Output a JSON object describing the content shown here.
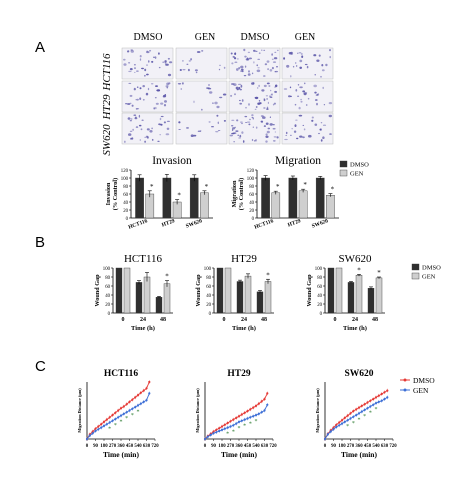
{
  "panels": {
    "a": "A",
    "b": "B",
    "c": "C"
  },
  "micrographs": {
    "columns": [
      "DMSO",
      "GEN",
      "DMSO",
      "GEN"
    ],
    "rows": [
      "HCT116",
      "HT29",
      "SW620"
    ],
    "stain_color": "#5a55a8"
  },
  "colors": {
    "dmso_bar": "#2f2f2f",
    "gen_bar": "#cfcfcf",
    "dmso_line": "#e53935",
    "gen_line": "#3d6fd6",
    "asterisk_c": "#2e7d32"
  },
  "chart_data": [
    {
      "id": "invasion",
      "type": "bar",
      "title": "Invasion",
      "ylabel": "Invasion\n(% Control)",
      "categories": [
        "HCT116",
        "HT29",
        "SW620"
      ],
      "series": [
        {
          "name": "DMSO",
          "values": [
            100,
            100,
            100
          ],
          "errors": [
            8,
            9,
            8
          ]
        },
        {
          "name": "GEN",
          "values": [
            60,
            40,
            63
          ],
          "errors": [
            8,
            6,
            5
          ]
        }
      ],
      "annotations": [
        "*",
        "*",
        "*"
      ],
      "ylim": [
        0,
        120
      ],
      "yticks": [
        0,
        20,
        40,
        60,
        80,
        100,
        120
      ]
    },
    {
      "id": "migration",
      "type": "bar",
      "title": "Migration",
      "ylabel": "Migration\n(% Control)",
      "categories": [
        "HCT116",
        "HT29",
        "SW620"
      ],
      "series": [
        {
          "name": "DMSO",
          "values": [
            100,
            100,
            100
          ],
          "errors": [
            6,
            5,
            4
          ]
        },
        {
          "name": "GEN",
          "values": [
            63,
            68,
            57
          ],
          "errors": [
            4,
            4,
            4
          ]
        }
      ],
      "annotations": [
        "*",
        "*",
        "*"
      ],
      "ylim": [
        0,
        120
      ],
      "yticks": [
        0,
        20,
        40,
        60,
        80,
        100,
        120
      ],
      "legend": {
        "position": "right",
        "items": [
          "DMSO",
          "GEN"
        ]
      }
    },
    {
      "id": "wound_hct116",
      "type": "bar",
      "title": "HCT116",
      "ylabel": "Wound Gap",
      "xlabel": "Time (h)",
      "categories": [
        "0",
        "24",
        "48"
      ],
      "series": [
        {
          "name": "DMSO",
          "values": [
            100,
            68,
            35
          ],
          "errors": [
            0,
            4,
            2
          ]
        },
        {
          "name": "GEN",
          "values": [
            100,
            80,
            65
          ],
          "errors": [
            0,
            10,
            7
          ]
        }
      ],
      "annotations": [
        "",
        "",
        "*"
      ],
      "ylim": [
        0,
        100
      ],
      "yticks": [
        0,
        20,
        40,
        60,
        80,
        100
      ]
    },
    {
      "id": "wound_ht29",
      "type": "bar",
      "title": "HT29",
      "ylabel": "Wound Gap",
      "xlabel": "Time (h)",
      "categories": [
        "0",
        "24",
        "48"
      ],
      "series": [
        {
          "name": "DMSO",
          "values": [
            100,
            70,
            47
          ],
          "errors": [
            0,
            3,
            3
          ]
        },
        {
          "name": "GEN",
          "values": [
            100,
            82,
            70
          ],
          "errors": [
            0,
            5,
            5
          ]
        }
      ],
      "annotations": [
        "",
        "",
        "*"
      ],
      "ylim": [
        0,
        100
      ],
      "yticks": [
        0,
        20,
        40,
        60,
        80,
        100
      ]
    },
    {
      "id": "wound_sw620",
      "type": "bar",
      "title": "SW620",
      "ylabel": "Wound Gap",
      "xlabel": "Time (h)",
      "categories": [
        "0",
        "24",
        "48"
      ],
      "series": [
        {
          "name": "DMSO",
          "values": [
            100,
            68,
            55
          ],
          "errors": [
            0,
            2,
            3
          ]
        },
        {
          "name": "GEN",
          "values": [
            100,
            84,
            78
          ],
          "errors": [
            0,
            2,
            2
          ]
        }
      ],
      "annotations": [
        "",
        "*",
        "*"
      ],
      "ylim": [
        0,
        100
      ],
      "yticks": [
        0,
        20,
        40,
        60,
        80,
        100
      ],
      "legend": {
        "position": "right",
        "items": [
          "DMSO",
          "GEN"
        ]
      }
    },
    {
      "id": "migdist_hct116",
      "type": "line",
      "title": "HCT116",
      "ylabel": "Migration Distance (μm)",
      "xlabel": "Time (min)",
      "xticks": [
        0,
        90,
        180,
        270,
        360,
        450,
        540,
        630,
        720
      ],
      "xlim": [
        0,
        720
      ],
      "ylim": [
        0,
        100
      ],
      "x": [
        0,
        30,
        60,
        90,
        120,
        150,
        180,
        210,
        240,
        270,
        300,
        330,
        360,
        390,
        420,
        450,
        480,
        510,
        540,
        570,
        600,
        630,
        660
      ],
      "series": [
        {
          "name": "DMSO",
          "values": [
            0,
            8,
            13,
            18,
            22,
            26,
            30,
            34,
            38,
            42,
            46,
            50,
            54,
            57,
            61,
            65,
            69,
            73,
            77,
            81,
            85,
            89,
            100
          ]
        },
        {
          "name": "GEN",
          "values": [
            0,
            6,
            10,
            14,
            17,
            20,
            23,
            26,
            29,
            32,
            35,
            38,
            41,
            44,
            47,
            50,
            53,
            56,
            59,
            62,
            65,
            68,
            80
          ]
        }
      ],
      "annotations": [
        "* * * * * *"
      ]
    },
    {
      "id": "migdist_ht29",
      "type": "line",
      "title": "HT29",
      "ylabel": "Migration Distance (μm)",
      "xlabel": "Time (min)",
      "xticks": [
        0,
        90,
        180,
        270,
        360,
        450,
        540,
        630,
        720
      ],
      "xlim": [
        0,
        720
      ],
      "ylim": [
        0,
        100
      ],
      "x": [
        0,
        30,
        60,
        90,
        120,
        150,
        180,
        210,
        240,
        270,
        300,
        330,
        360,
        390,
        420,
        450,
        480,
        510,
        540,
        570,
        600,
        630,
        660
      ],
      "series": [
        {
          "name": "DMSO",
          "values": [
            0,
            5,
            9,
            13,
            16,
            19,
            22,
            25,
            28,
            31,
            34,
            37,
            40,
            43,
            46,
            49,
            52,
            55,
            58,
            62,
            66,
            70,
            80
          ]
        },
        {
          "name": "GEN",
          "values": [
            0,
            4,
            7,
            10,
            12,
            14,
            16,
            18,
            20,
            22,
            24,
            27,
            30,
            32,
            34,
            36,
            38,
            40,
            42,
            44,
            47,
            50,
            60
          ]
        }
      ],
      "annotations": [
        "* * * * * *"
      ]
    },
    {
      "id": "migdist_sw620",
      "type": "line",
      "title": "SW620",
      "ylabel": "Migration Distance (μm)",
      "xlabel": "Time (min)",
      "xticks": [
        0,
        90,
        180,
        270,
        360,
        450,
        540,
        630,
        720
      ],
      "xlim": [
        0,
        720
      ],
      "ylim": [
        0,
        100
      ],
      "x": [
        0,
        30,
        60,
        90,
        120,
        150,
        180,
        210,
        240,
        270,
        300,
        330,
        360,
        390,
        420,
        450,
        480,
        510,
        540,
        570,
        600,
        630,
        660
      ],
      "series": [
        {
          "name": "DMSO",
          "values": [
            0,
            9,
            15,
            20,
            25,
            29,
            33,
            37,
            41,
            45,
            49,
            52,
            55,
            58,
            61,
            64,
            67,
            70,
            73,
            76,
            79,
            82,
            85
          ]
        },
        {
          "name": "GEN",
          "values": [
            0,
            8,
            13,
            17,
            21,
            24,
            27,
            30,
            33,
            36,
            39,
            42,
            45,
            48,
            51,
            54,
            57,
            60,
            63,
            65,
            67,
            70,
            73
          ]
        }
      ],
      "annotations": [
        "* * * * * *"
      ],
      "legend": {
        "position": "top-right",
        "items": [
          "DMSO",
          "GEN"
        ]
      }
    }
  ]
}
